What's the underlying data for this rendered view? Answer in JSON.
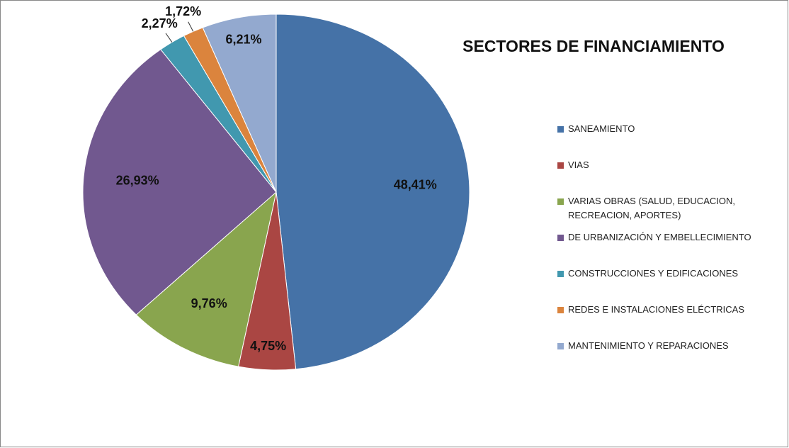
{
  "chart_data": {
    "type": "pie",
    "title": "SECTORES DE FINANCIAMIENTO",
    "categories": [
      "SANEAMIENTO",
      "VIAS",
      "VARIAS OBRAS (SALUD, EDUCACION, RECREACION, APORTES)",
      "DE URBANIZACIÓN Y EMBELLECIMIENTO",
      "CONSTRUCCIONES Y EDIFICACIONES",
      "REDES E INSTALACIONES ELÉCTRICAS",
      "MANTENIMIENTO Y REPARACIONES"
    ],
    "values": [
      48.41,
      4.75,
      9.76,
      26.93,
      2.27,
      1.72,
      6.21
    ],
    "value_labels": [
      "48,41%",
      "4,75%",
      "9,76%",
      "26,93%",
      "2,27%",
      "1,72%",
      "6,21%"
    ],
    "colors": [
      "#4572a7",
      "#aa4643",
      "#89a54e",
      "#71588f",
      "#4198af",
      "#db843d",
      "#93a9cf"
    ]
  }
}
